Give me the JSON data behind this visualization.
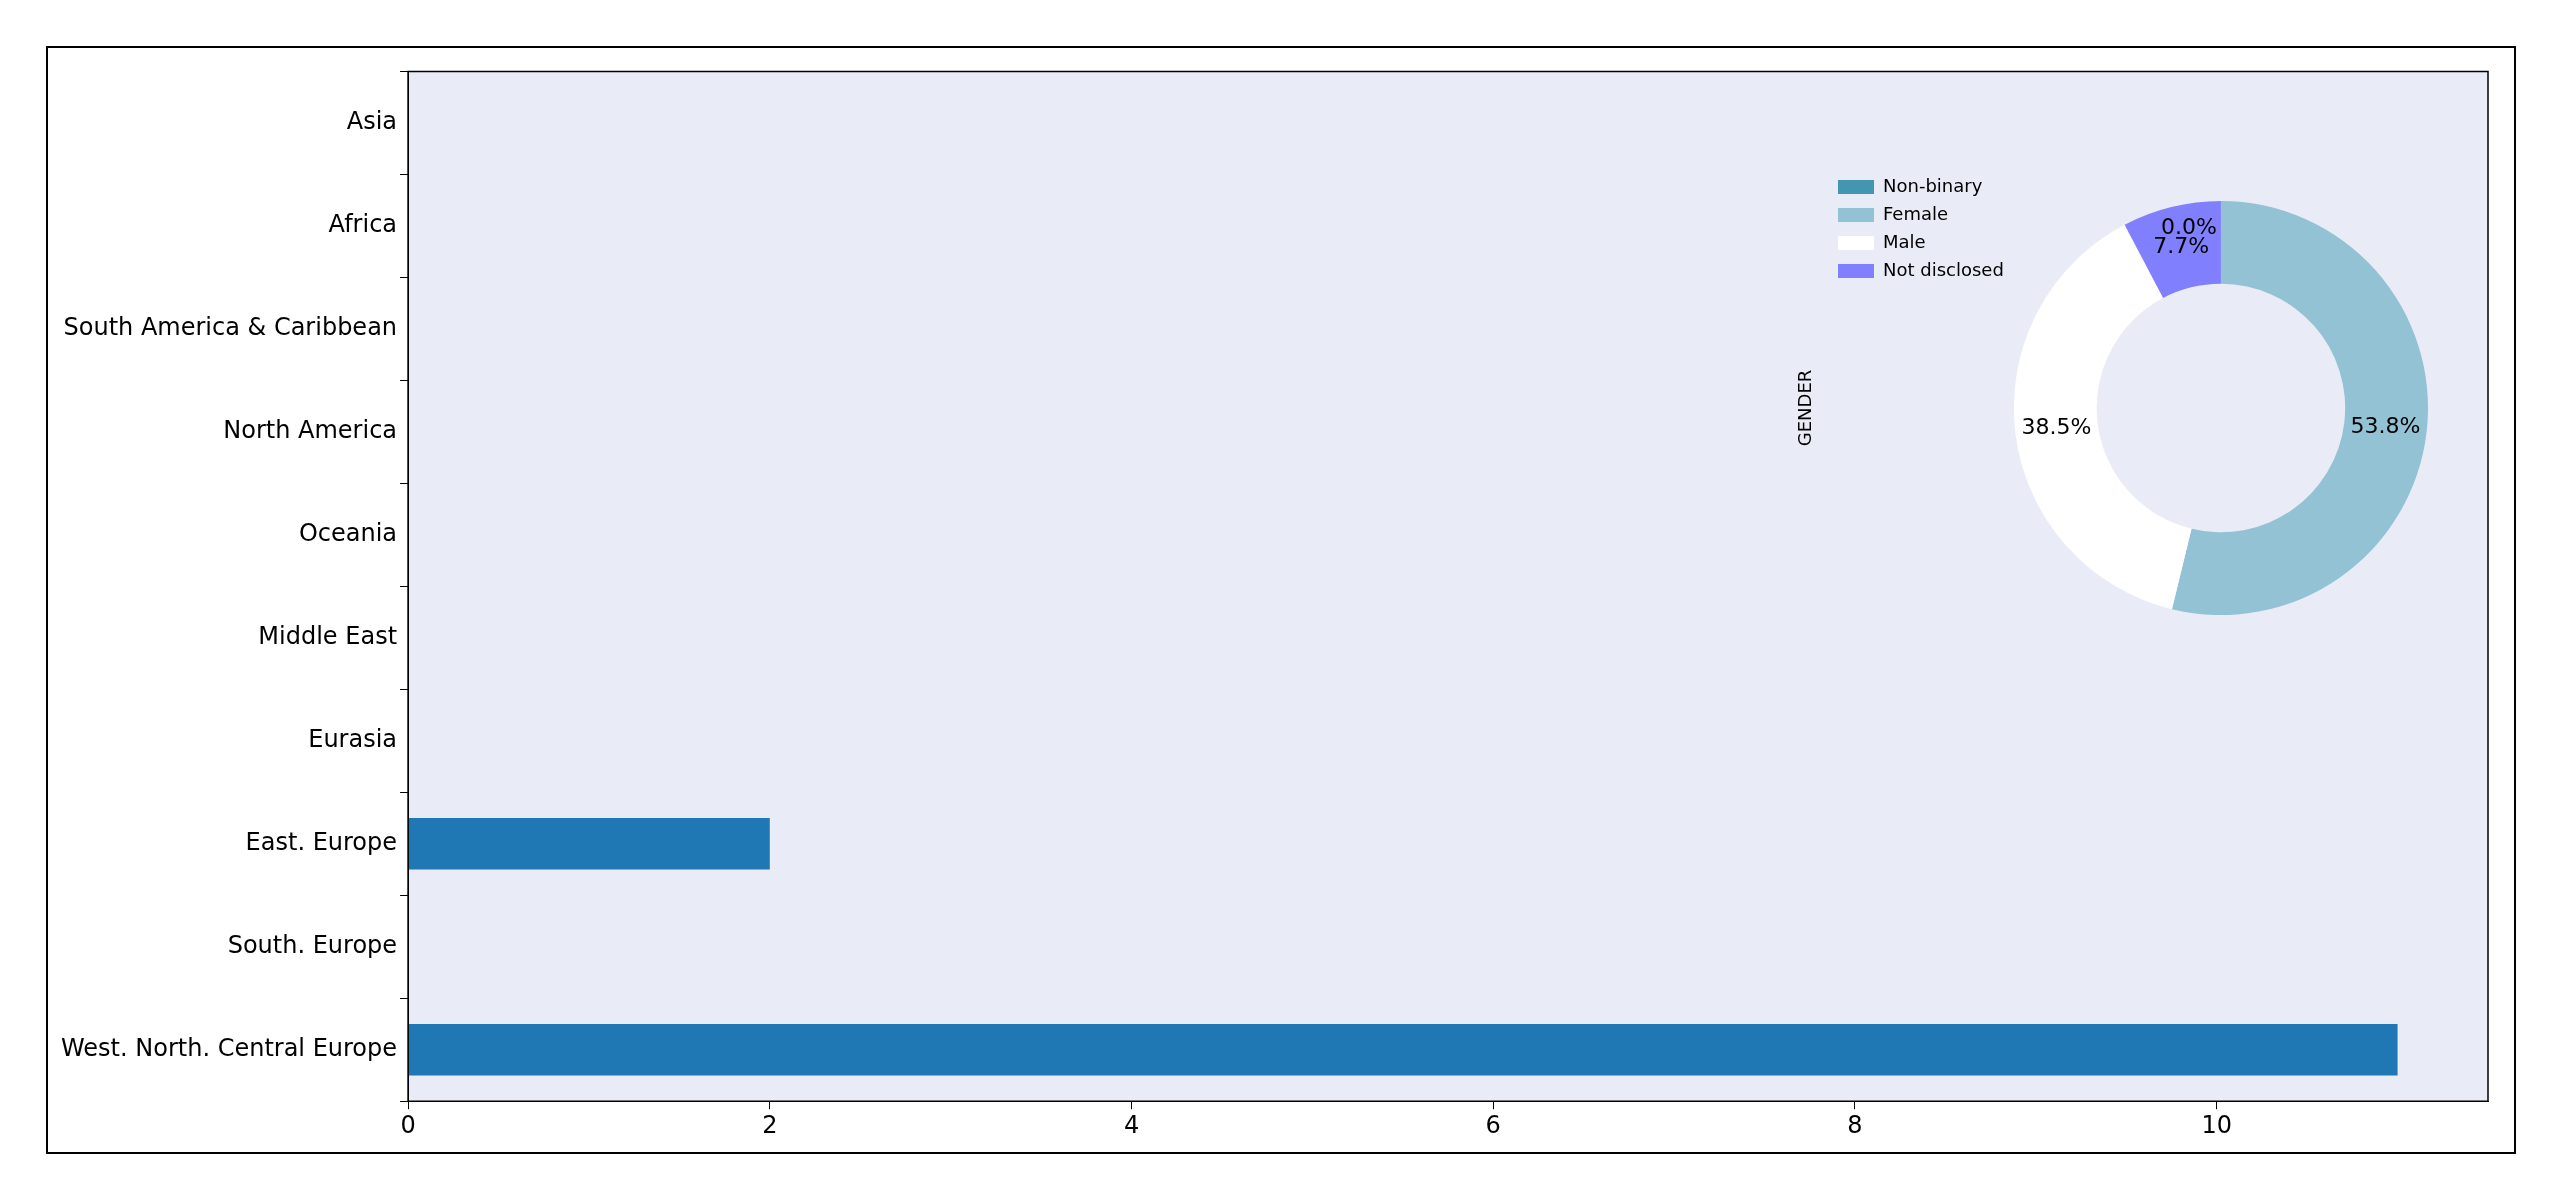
{
  "chart_data": [
    {
      "type": "bar",
      "orientation": "horizontal",
      "categories": [
        "Asia",
        "Africa",
        "South America & Caribbean",
        "North America",
        "Oceania",
        "Middle East",
        "Eurasia",
        "East. Europe",
        "South. Europe",
        "West. North. Central Europe"
      ],
      "values": [
        0,
        0,
        0,
        0,
        0,
        0,
        0,
        2,
        0,
        11
      ],
      "color": "#1f77b4",
      "xlim": [
        0,
        11.5
      ],
      "xticks": [
        0,
        2,
        4,
        6,
        8,
        10
      ]
    },
    {
      "type": "donut",
      "ylabel": "GENDER",
      "categories": [
        "Non-binary",
        "Female",
        "Male",
        "Not disclosed"
      ],
      "values": [
        0,
        53.8,
        38.5,
        7.7
      ],
      "colors": [
        "#4496b0",
        "#92c2d4",
        "#ffffff",
        "#8080ff"
      ],
      "value_labels": [
        "0.0%",
        "53.8%",
        "38.5%",
        "7.7%"
      ],
      "legend": "top left"
    }
  ]
}
